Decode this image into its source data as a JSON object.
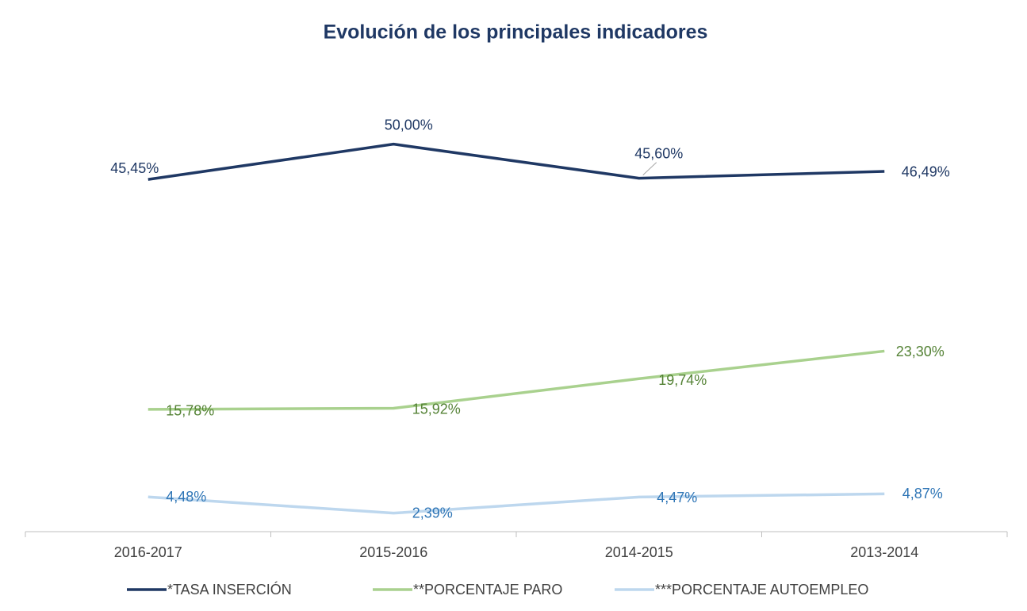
{
  "chart_data": {
    "type": "line",
    "title": "Evolución de los principales indicadores",
    "categories": [
      "2016-2017",
      "2015-2016",
      "2014-2015",
      "2013-2014"
    ],
    "ylim": [
      0,
      60
    ],
    "series": [
      {
        "name": "*TASA INSERCIÓN",
        "color": "#1f3864",
        "label_color": "#1f3864",
        "values": [
          45.45,
          50.0,
          45.6,
          46.49
        ],
        "value_labels": [
          "45,45%",
          "50,00%",
          "45,60%",
          "46,49%"
        ]
      },
      {
        "name": "**PORCENTAJE PARO",
        "color": "#a9d18e",
        "label_color": "#548235",
        "values": [
          15.78,
          15.92,
          19.74,
          23.3
        ],
        "value_labels": [
          "15,78%",
          "15,92%",
          "19,74%",
          "23,30%"
        ]
      },
      {
        "name": "***PORCENTAJE AUTOEMPLEO",
        "color": "#bdd7ee",
        "label_color": "#2e75b6",
        "values": [
          4.48,
          2.39,
          4.47,
          4.87
        ],
        "value_labels": [
          "4,48%",
          "2,39%",
          "4,47%",
          "4,87%"
        ]
      }
    ]
  }
}
